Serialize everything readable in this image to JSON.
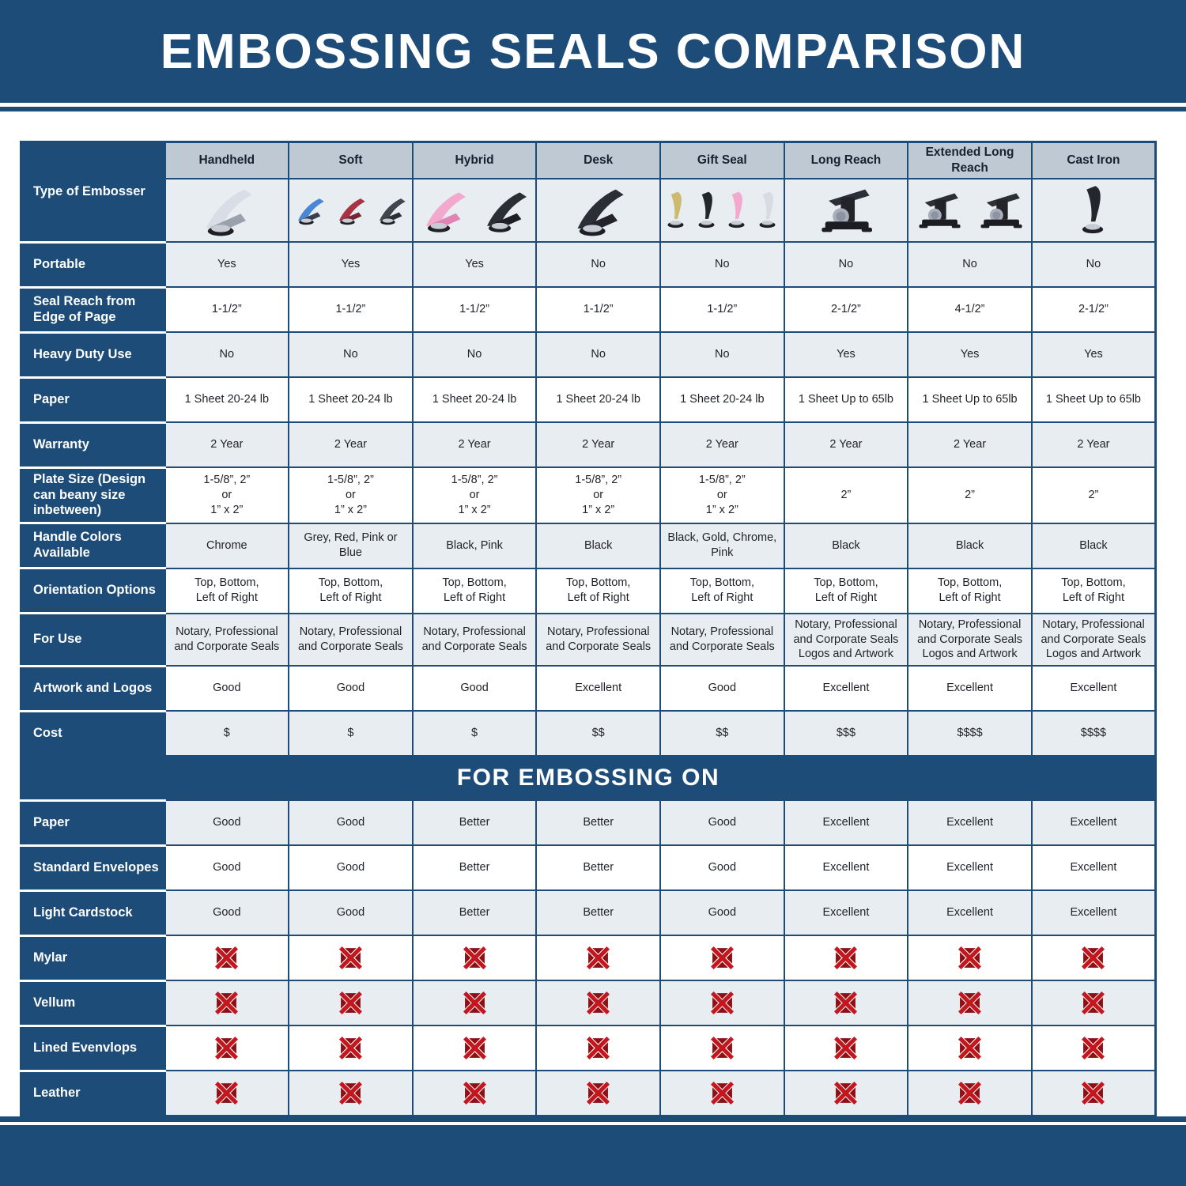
{
  "header": {
    "title": "EMBOSSING SEALS COMPARISON"
  },
  "colors": {
    "navy": "#1d4c78",
    "header_cell_bg": "#bfc9d4",
    "row_shade_bg": "#e8edf2",
    "x_icon_red": "#c3161d",
    "x_icon_dark_red": "#8e1014"
  },
  "chart_data": {
    "type": "table",
    "title": "EMBOSSING SEALS COMPARISON",
    "section_banner": "FOR EMBOSSING ON",
    "columns": [
      "Handheld",
      "Soft",
      "Hybrid",
      "Desk",
      "Gift Seal",
      "Long Reach",
      "Extended Long Reach",
      "Cast Iron"
    ],
    "rows": [
      {
        "label": "Type of Embosser",
        "kind": "images",
        "values": [
          "handheld",
          "soft",
          "hybrid",
          "desk",
          "gift-seal",
          "long-reach",
          "extended-long-reach",
          "cast-iron"
        ]
      },
      {
        "label": "Portable",
        "kind": "text",
        "values": [
          "Yes",
          "Yes",
          "Yes",
          "No",
          "No",
          "No",
          "No",
          "No"
        ]
      },
      {
        "label": "Seal Reach from Edge of Page",
        "kind": "text",
        "values": [
          "1-1/2”",
          "1-1/2”",
          "1-1/2”",
          "1-1/2”",
          "1-1/2”",
          "2-1/2”",
          "4-1/2”",
          "2-1/2”"
        ]
      },
      {
        "label": "Heavy Duty Use",
        "kind": "text",
        "values": [
          "No",
          "No",
          "No",
          "No",
          "No",
          "Yes",
          "Yes",
          "Yes"
        ]
      },
      {
        "label": "Paper",
        "kind": "text",
        "values": [
          "1 Sheet 20-24 lb",
          "1 Sheet 20-24 lb",
          "1 Sheet 20-24 lb",
          "1 Sheet 20-24 lb",
          "1 Sheet 20-24 lb",
          "1 Sheet Up to 65lb",
          "1 Sheet Up to 65lb",
          "1 Sheet Up to 65lb"
        ]
      },
      {
        "label": "Warranty",
        "kind": "text",
        "values": [
          "2 Year",
          "2 Year",
          "2 Year",
          "2 Year",
          "2 Year",
          "2 Year",
          "2 Year",
          "2 Year"
        ]
      },
      {
        "label": "Plate Size (Design can beany size inbetween)",
        "kind": "text",
        "values": [
          "1-5/8”, 2”\nor\n1” x 2”",
          "1-5/8”, 2”\nor\n1” x 2”",
          "1-5/8”, 2”\nor\n1” x 2”",
          "1-5/8”, 2”\nor\n1” x 2”",
          "1-5/8”, 2”\nor\n1” x 2”",
          "2”",
          "2”",
          "2”"
        ]
      },
      {
        "label": "Handle Colors Available",
        "kind": "text",
        "values": [
          "Chrome",
          "Grey, Red, Pink or Blue",
          "Black, Pink",
          "Black",
          "Black, Gold, Chrome, Pink",
          "Black",
          "Black",
          "Black"
        ]
      },
      {
        "label": "Orientation Options",
        "kind": "text",
        "values": [
          "Top, Bottom,\nLeft of Right",
          "Top, Bottom,\nLeft of Right",
          "Top, Bottom,\nLeft of Right",
          "Top, Bottom,\nLeft of Right",
          "Top, Bottom,\nLeft of Right",
          "Top, Bottom,\nLeft of Right",
          "Top, Bottom,\nLeft of Right",
          "Top, Bottom,\nLeft of Right"
        ]
      },
      {
        "label": "For Use",
        "kind": "text",
        "values": [
          "Notary, Professional\nand Corporate Seals",
          "Notary, Professional\nand Corporate Seals",
          "Notary, Professional\nand Corporate Seals",
          "Notary, Professional\nand Corporate Seals",
          "Notary, Professional\nand Corporate Seals",
          "Notary, Professional\nand Corporate Seals\nLogos and Artwork",
          "Notary, Professional\nand Corporate Seals\nLogos and Artwork",
          "Notary, Professional\nand Corporate Seals\nLogos and Artwork"
        ]
      },
      {
        "label": "Artwork and Logos",
        "kind": "text",
        "values": [
          "Good",
          "Good",
          "Good",
          "Excellent",
          "Good",
          "Excellent",
          "Excellent",
          "Excellent"
        ]
      },
      {
        "label": "Cost",
        "kind": "text",
        "values": [
          "$",
          "$",
          "$",
          "$$",
          "$$",
          "$$$",
          "$$$$",
          "$$$$"
        ]
      },
      {
        "label": "FOR EMBOSSING ON",
        "kind": "section",
        "values": []
      },
      {
        "label": "Paper",
        "kind": "text",
        "values": [
          "Good",
          "Good",
          "Better",
          "Better",
          "Good",
          "Excellent",
          "Excellent",
          "Excellent"
        ]
      },
      {
        "label": "Standard Envelopes",
        "kind": "text",
        "values": [
          "Good",
          "Good",
          "Better",
          "Better",
          "Good",
          "Excellent",
          "Excellent",
          "Excellent"
        ]
      },
      {
        "label": "Light Cardstock",
        "kind": "text",
        "values": [
          "Good",
          "Good",
          "Better",
          "Better",
          "Good",
          "Excellent",
          "Excellent",
          "Excellent"
        ]
      },
      {
        "label": "Mylar",
        "kind": "x",
        "values": [
          "not-supported",
          "not-supported",
          "not-supported",
          "not-supported",
          "not-supported",
          "not-supported",
          "not-supported",
          "not-supported"
        ]
      },
      {
        "label": "Vellum",
        "kind": "x",
        "values": [
          "not-supported",
          "not-supported",
          "not-supported",
          "not-supported",
          "not-supported",
          "not-supported",
          "not-supported",
          "not-supported"
        ]
      },
      {
        "label": "Lined Evenvlops",
        "kind": "x",
        "values": [
          "not-supported",
          "not-supported",
          "not-supported",
          "not-supported",
          "not-supported",
          "not-supported",
          "not-supported",
          "not-supported"
        ]
      },
      {
        "label": "Leather",
        "kind": "x",
        "values": [
          "not-supported",
          "not-supported",
          "not-supported",
          "not-supported",
          "not-supported",
          "not-supported",
          "not-supported",
          "not-supported"
        ]
      }
    ]
  }
}
